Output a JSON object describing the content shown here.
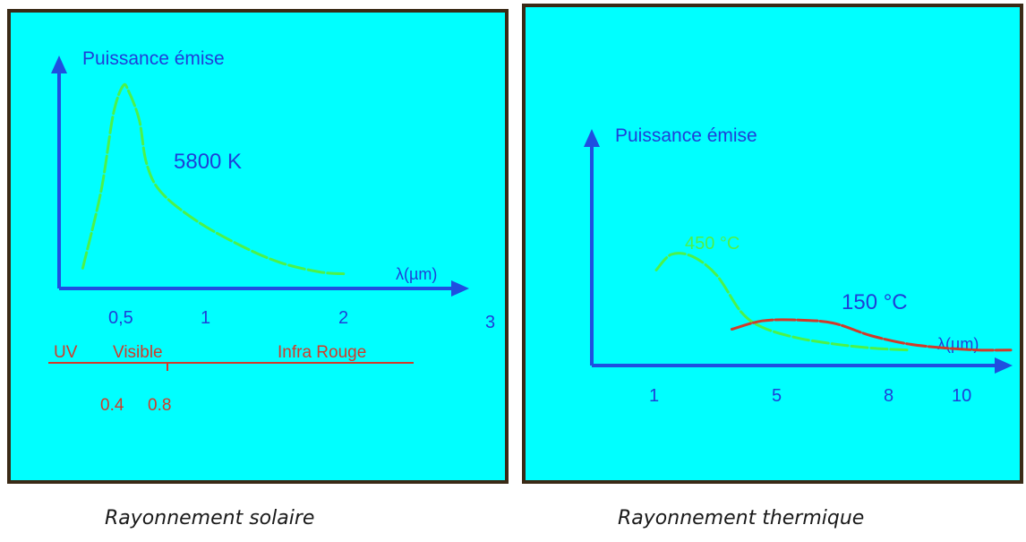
{
  "colors": {
    "panel_background": "#00ffff",
    "panel_border": "#3a2a16",
    "axis": "#1f4fe0",
    "axis_text": "#1f3fd8",
    "curve_green": "#4cf24a",
    "curve_red": "#d03b2a",
    "band_text": "#d03b2a"
  },
  "chart_data": [
    {
      "type": "line",
      "ylabel": "Puissance émise",
      "xlabel": "λ(µm)",
      "annotation": "5800 K",
      "tick_labels": [
        "0,5",
        "1",
        "2",
        "3"
      ],
      "spectrum_bands": {
        "labels": [
          "UV",
          "Visible",
          "Infra Rouge"
        ],
        "boundaries": [
          "0.4",
          "0.8"
        ]
      },
      "series": [
        {
          "name": "5800 K",
          "color": "green",
          "x": [
            0.15,
            0.3,
            0.4,
            0.48,
            0.52,
            0.58,
            0.62,
            0.7,
            0.9,
            1.2,
            1.5,
            1.8,
            2.0
          ],
          "y": [
            0.05,
            0.45,
            0.85,
            1.0,
            0.97,
            0.82,
            0.6,
            0.45,
            0.3,
            0.17,
            0.08,
            0.03,
            0.02
          ]
        }
      ],
      "caption": "Rayonnement solaire"
    },
    {
      "type": "line",
      "ylabel": "Puissance émise",
      "xlabel": "λ(µm)",
      "tick_labels": [
        "1",
        "5",
        "8",
        "10"
      ],
      "annotations": [
        "450 °C",
        "150 °C"
      ],
      "series": [
        {
          "name": "450 °C",
          "color": "green",
          "x": [
            1.0,
            1.5,
            2.2,
            3.0,
            3.8,
            4.5,
            5.5,
            6.5,
            7.5,
            8.5
          ],
          "y": [
            0.85,
            1.0,
            0.98,
            0.8,
            0.45,
            0.3,
            0.2,
            0.14,
            0.1,
            0.08
          ]
        },
        {
          "name": "150 °C",
          "color": "red",
          "x": [
            3.5,
            4.5,
            5.5,
            6.5,
            7.5,
            8.5,
            9.5,
            10.5,
            11.5
          ],
          "y": [
            0.28,
            0.36,
            0.37,
            0.34,
            0.22,
            0.14,
            0.1,
            0.08,
            0.08
          ]
        }
      ],
      "caption": "Rayonnement thermique"
    }
  ]
}
